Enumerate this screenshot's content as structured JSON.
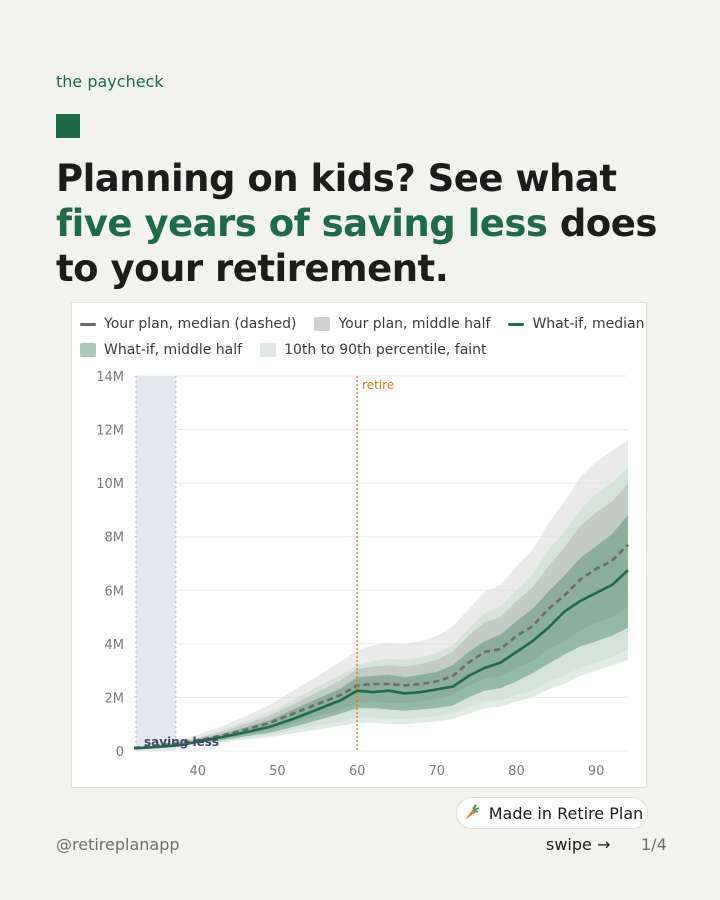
{
  "brand": "the paycheck",
  "headline": {
    "part1": "Planning on kids? See what ",
    "accent": "five years of saving less",
    "part2": " does to your retirement."
  },
  "colors": {
    "accent": "#1f6b47",
    "your_plan_median": "#6b6b6b",
    "your_plan_middle_half": "#bfc3c0",
    "whatif_median": "#1f6b47",
    "whatif_middle_half": "#5e9878",
    "faint_band": "#d8e7de",
    "retire_marker": "#c8841f",
    "saving_less_shade": "#e6e8ef"
  },
  "badge": {
    "icon": "carrot-icon",
    "label": "Made in Retire Plan"
  },
  "footer": {
    "handle": "@retireplanapp",
    "swipe": "swipe →",
    "page": "1/4"
  },
  "chart_data": {
    "type": "area",
    "legend": [
      {
        "label": "Your plan, median (dashed)",
        "swatch": "line",
        "color": "#6b6b6b"
      },
      {
        "label": "Your plan, middle half",
        "swatch": "box",
        "color": "#cfd1ce"
      },
      {
        "label": "What-if, median",
        "swatch": "line",
        "color": "#1f6b47"
      },
      {
        "label": "What-if, middle half",
        "swatch": "box",
        "color": "#a9c8b5"
      },
      {
        "label": "10th to 90th percentile, faint",
        "swatch": "box",
        "color": "#dde9e1"
      }
    ],
    "legend_placement": "top",
    "xlim": [
      32,
      94
    ],
    "ylim": [
      0,
      14
    ],
    "x_ticks": [
      40,
      50,
      60,
      70,
      80,
      90
    ],
    "x_tick_labels": [
      "40",
      "50",
      "60",
      "70",
      "80",
      "90"
    ],
    "y_ticks": [
      0,
      2,
      4,
      6,
      8,
      10,
      12,
      14
    ],
    "y_tick_labels": [
      "0",
      "2M",
      "4M",
      "6M",
      "8M",
      "10M",
      "12M",
      "14M"
    ],
    "grid": true,
    "annotations": [
      {
        "label": "retire",
        "x": 60,
        "kind": "vertical-line"
      },
      {
        "label": "saving less",
        "x_range": [
          32,
          37
        ],
        "kind": "shaded-span"
      }
    ],
    "x": [
      32,
      35,
      38,
      40,
      43,
      46,
      49,
      52,
      55,
      58,
      60,
      62,
      64,
      66,
      68,
      70,
      72,
      74,
      76,
      78,
      80,
      82,
      84,
      86,
      88,
      90,
      92,
      94
    ],
    "series": [
      {
        "name": "Your plan, median (dashed)",
        "role": "median",
        "plan": "base",
        "values": [
          0.12,
          0.2,
          0.3,
          0.4,
          0.58,
          0.8,
          1.05,
          1.4,
          1.75,
          2.1,
          2.45,
          2.5,
          2.5,
          2.45,
          2.5,
          2.6,
          2.8,
          3.3,
          3.7,
          3.8,
          4.3,
          4.65,
          5.3,
          5.8,
          6.4,
          6.8,
          7.1,
          7.7
        ]
      },
      {
        "name": "Your plan, middle half",
        "role": "band_mid",
        "plan": "base",
        "low": [
          0.12,
          0.18,
          0.26,
          0.33,
          0.45,
          0.62,
          0.8,
          1.05,
          1.3,
          1.55,
          1.8,
          1.85,
          1.8,
          1.8,
          1.85,
          1.95,
          2.1,
          2.45,
          2.7,
          2.8,
          3.1,
          3.35,
          3.8,
          4.1,
          4.5,
          4.8,
          5.0,
          5.4
        ],
        "high": [
          0.12,
          0.22,
          0.35,
          0.48,
          0.72,
          1.0,
          1.32,
          1.75,
          2.2,
          2.65,
          3.05,
          3.15,
          3.2,
          3.15,
          3.25,
          3.4,
          3.7,
          4.3,
          4.8,
          5.0,
          5.6,
          6.1,
          6.9,
          7.6,
          8.4,
          8.9,
          9.3,
          10.0
        ]
      },
      {
        "name": "Your plan, 10th to 90th percentile",
        "role": "band_faint",
        "plan": "base",
        "low": [
          0.1,
          0.15,
          0.22,
          0.28,
          0.36,
          0.48,
          0.6,
          0.78,
          0.95,
          1.1,
          1.25,
          1.25,
          1.2,
          1.2,
          1.25,
          1.3,
          1.4,
          1.65,
          1.85,
          1.9,
          2.1,
          2.25,
          2.6,
          2.8,
          3.1,
          3.3,
          3.5,
          3.8
        ],
        "high": [
          0.14,
          0.25,
          0.42,
          0.6,
          0.92,
          1.3,
          1.72,
          2.25,
          2.8,
          3.35,
          3.75,
          3.95,
          4.05,
          4.0,
          4.1,
          4.3,
          4.65,
          5.3,
          5.95,
          6.2,
          6.9,
          7.5,
          8.5,
          9.3,
          10.2,
          10.8,
          11.2,
          11.6
        ]
      },
      {
        "name": "What-if, median",
        "role": "median",
        "plan": "whatif",
        "values": [
          0.1,
          0.15,
          0.22,
          0.36,
          0.52,
          0.7,
          0.9,
          1.2,
          1.55,
          1.9,
          2.25,
          2.2,
          2.25,
          2.15,
          2.2,
          2.3,
          2.4,
          2.8,
          3.1,
          3.3,
          3.7,
          4.1,
          4.6,
          5.2,
          5.6,
          5.9,
          6.2,
          6.75
        ]
      },
      {
        "name": "What-if, middle half",
        "role": "band_mid",
        "plan": "whatif",
        "low": [
          0.1,
          0.13,
          0.2,
          0.3,
          0.4,
          0.55,
          0.68,
          0.9,
          1.15,
          1.4,
          1.6,
          1.6,
          1.55,
          1.5,
          1.55,
          1.6,
          1.7,
          2.0,
          2.25,
          2.35,
          2.6,
          2.9,
          3.25,
          3.6,
          3.9,
          4.1,
          4.3,
          4.6
        ],
        "high": [
          0.1,
          0.17,
          0.26,
          0.42,
          0.62,
          0.88,
          1.15,
          1.55,
          1.95,
          2.35,
          2.75,
          2.8,
          2.85,
          2.75,
          2.85,
          2.95,
          3.2,
          3.7,
          4.1,
          4.35,
          4.85,
          5.3,
          5.95,
          6.55,
          7.2,
          7.65,
          8.1,
          8.8
        ]
      },
      {
        "name": "What-if, 10th to 90th percentile",
        "role": "band_faint",
        "plan": "whatif",
        "low": [
          0.08,
          0.12,
          0.18,
          0.25,
          0.32,
          0.42,
          0.52,
          0.66,
          0.8,
          0.95,
          1.05,
          1.05,
          1.0,
          1.0,
          1.05,
          1.1,
          1.2,
          1.4,
          1.6,
          1.65,
          1.85,
          2.0,
          2.3,
          2.5,
          2.8,
          3.0,
          3.2,
          3.4
        ],
        "high": [
          0.12,
          0.2,
          0.32,
          0.5,
          0.78,
          1.1,
          1.45,
          1.9,
          2.4,
          2.85,
          3.2,
          3.35,
          3.45,
          3.4,
          3.5,
          3.65,
          3.95,
          4.55,
          5.15,
          5.4,
          6.0,
          6.6,
          7.5,
          8.2,
          9.0,
          9.6,
          10.0,
          10.6
        ]
      }
    ]
  }
}
